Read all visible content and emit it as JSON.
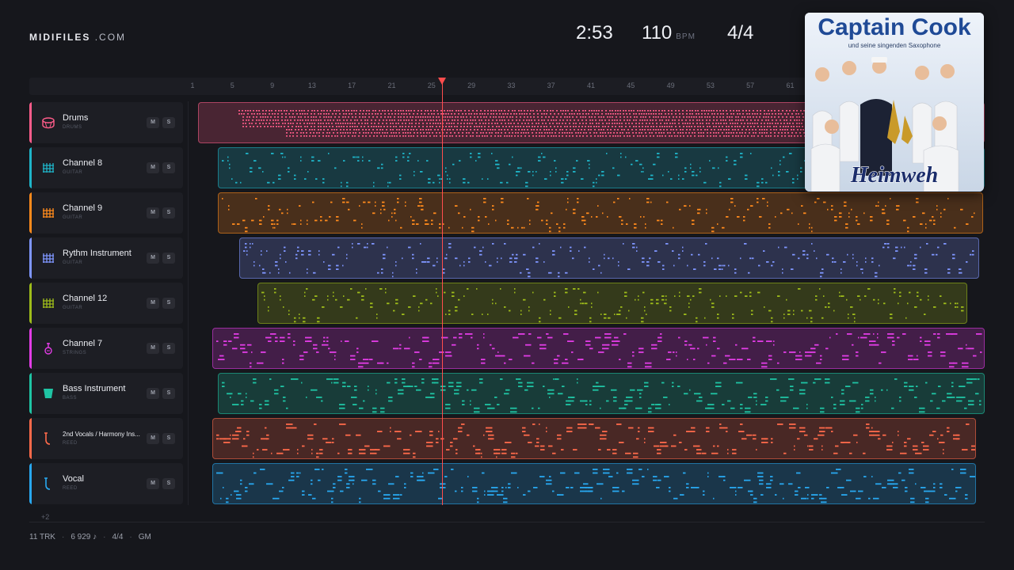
{
  "header": {
    "brand_bold": "MIDIFILES",
    "brand_rest": ".COM",
    "time": "2:53",
    "tempo": "110",
    "tempo_unit": "BPM",
    "time_signature": "4/4"
  },
  "cover": {
    "title": "Captain Cook",
    "subtitle": "und seine singenden Saxophone",
    "album": "Heimweh"
  },
  "ruler": {
    "ticks": [
      "1",
      "5",
      "9",
      "13",
      "17",
      "21",
      "25",
      "29",
      "33",
      "37",
      "41",
      "45",
      "49",
      "53",
      "57",
      "61"
    ]
  },
  "playhead_bar": 25,
  "tracks": [
    {
      "name": "Drums",
      "category": "DRUMS",
      "color": "#ff5c8a",
      "icon": "drum-icon",
      "mute": "M",
      "solo": "S"
    },
    {
      "name": "Channel 8",
      "category": "GUITAR",
      "color": "#1fb5c9",
      "icon": "guitar-icon",
      "mute": "M",
      "solo": "S"
    },
    {
      "name": "Channel 9",
      "category": "GUITAR",
      "color": "#ff8a1c",
      "icon": "guitar-icon",
      "mute": "M",
      "solo": "S"
    },
    {
      "name": "Rythm Instrument",
      "category": "GUITAR",
      "color": "#7f96ff",
      "icon": "guitar-icon",
      "mute": "M",
      "solo": "S"
    },
    {
      "name": "Channel 12",
      "category": "GUITAR",
      "color": "#9ebc1a",
      "icon": "guitar-icon",
      "mute": "M",
      "solo": "S"
    },
    {
      "name": "Channel 7",
      "category": "STRINGS",
      "color": "#e23ce6",
      "icon": "violin-icon",
      "mute": "M",
      "solo": "S"
    },
    {
      "name": "Bass Instrument",
      "category": "BASS",
      "color": "#1fc4a4",
      "icon": "bass-icon",
      "mute": "M",
      "solo": "S"
    },
    {
      "name": "2nd Vocals / Harmony Ins...",
      "category": "REED",
      "color": "#ff6a4a",
      "icon": "saxophone-icon",
      "mute": "M",
      "solo": "S"
    },
    {
      "name": "Vocal",
      "category": "REED",
      "color": "#28a8f0",
      "icon": "saxophone-icon",
      "mute": "M",
      "solo": "S"
    }
  ],
  "more_tracks": "+2",
  "footer": {
    "tracks": "11 TRK",
    "notes": "6 929 ♪",
    "meter": "4/4",
    "standard": "GM"
  }
}
